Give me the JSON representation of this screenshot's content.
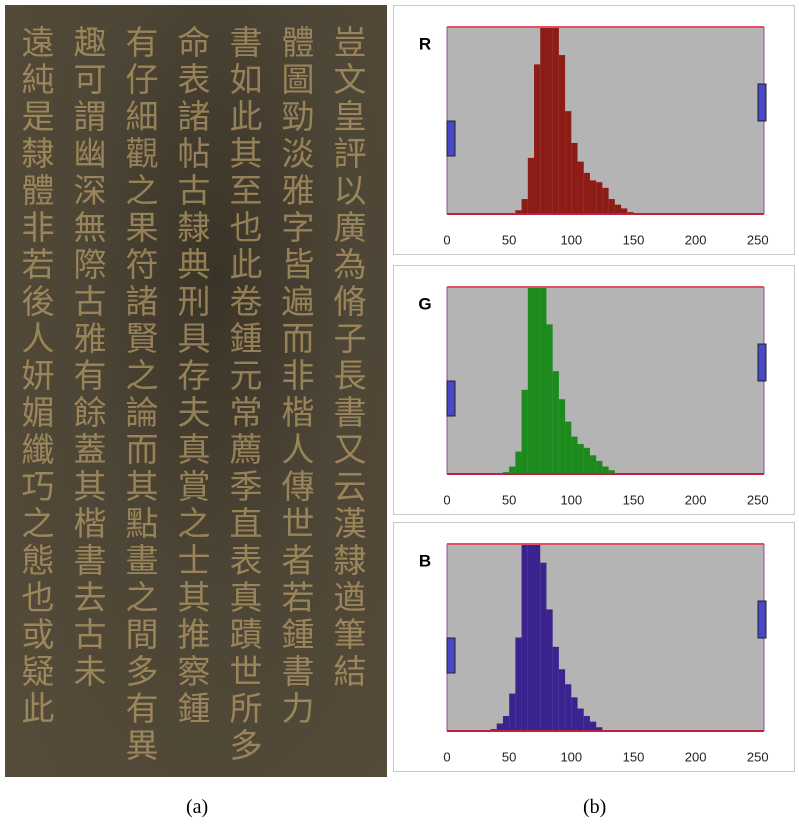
{
  "image": {
    "columns": [
      "豈文皇評以廣為脩子長書又云漢隸遒筆結",
      "體圖勁淡雅字皆遍而非楷人傳世者若鍾書力",
      "書如此其至也此卷鍾元常薦季直表真蹟世所多",
      "命表諸帖古隸典刑具存夫真賞之士其推察鍾",
      "有仔細觀之果符諸賢之論而其點畫之間多有異",
      "趣可謂幽深無際古雅有餘蓋其楷書去古未",
      "遠純是隸體非若後人妍媚纖巧之態也或疑此"
    ]
  },
  "captions": [
    "(a)",
    "(b)"
  ],
  "chart_data": [
    {
      "type": "histogram",
      "title": "R",
      "color": "#8e1c16",
      "bins": [
        30,
        35,
        40,
        45,
        50,
        55,
        60,
        65,
        70,
        75,
        80,
        85,
        90,
        95,
        100,
        105,
        110,
        115,
        120,
        125,
        130,
        135,
        140,
        145,
        150
      ],
      "values": [
        0,
        0,
        0,
        0,
        0,
        2,
        8,
        30,
        80,
        100,
        100,
        100,
        85,
        55,
        38,
        28,
        22,
        18,
        17,
        14,
        8,
        5,
        3,
        1
      ],
      "xlim": [
        0,
        255
      ],
      "xticks": [
        0,
        50,
        100,
        150,
        200,
        250
      ],
      "ylim": [
        0,
        100
      ]
    },
    {
      "type": "histogram",
      "title": "G",
      "color": "#1d8a1d",
      "bins": [
        30,
        35,
        40,
        45,
        50,
        55,
        60,
        65,
        70,
        75,
        80,
        85,
        90,
        95,
        100,
        105,
        110,
        115,
        120,
        125,
        130,
        135,
        140,
        145,
        150
      ],
      "values": [
        0,
        0,
        0,
        1,
        4,
        12,
        45,
        100,
        100,
        100,
        80,
        55,
        40,
        28,
        20,
        16,
        14,
        10,
        7,
        4,
        2,
        0,
        0,
        0
      ],
      "xlim": [
        0,
        255
      ],
      "xticks": [
        0,
        50,
        100,
        150,
        200,
        250
      ],
      "ylim": [
        0,
        100
      ]
    },
    {
      "type": "histogram",
      "title": "B",
      "color": "#3b238f",
      "bins": [
        30,
        35,
        40,
        45,
        50,
        55,
        60,
        65,
        70,
        75,
        80,
        85,
        90,
        95,
        100,
        105,
        110,
        115,
        120,
        125,
        130,
        135,
        140,
        145,
        150
      ],
      "values": [
        0,
        1,
        4,
        8,
        20,
        50,
        100,
        100,
        100,
        90,
        65,
        45,
        33,
        25,
        18,
        12,
        8,
        5,
        2,
        0,
        0,
        0,
        0,
        0
      ],
      "xlim": [
        0,
        255
      ],
      "xticks": [
        0,
        50,
        100,
        150,
        200,
        250
      ],
      "ylim": [
        0,
        100
      ]
    }
  ]
}
